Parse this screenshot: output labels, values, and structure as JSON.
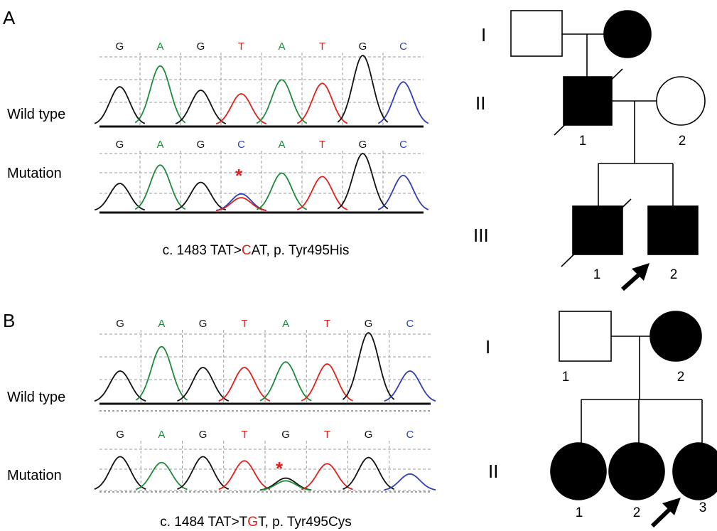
{
  "colors": {
    "G": "#111111",
    "A": "#1f8a3a",
    "T": "#e0201b",
    "C": "#2e3fb5",
    "mutation_highlight": "#e0201b",
    "affected": "#000000",
    "unaffected": "#ffffff"
  },
  "panelA": {
    "letter": "A",
    "wild_label": "Wild type",
    "mut_label": "Mutation",
    "wild_bases": [
      "G",
      "A",
      "G",
      "T",
      "A",
      "T",
      "G",
      "C"
    ],
    "mut_bases": [
      "G",
      "A",
      "G",
      "C",
      "A",
      "T",
      "G",
      "C"
    ],
    "wild_peaks": [
      0.55,
      0.85,
      0.5,
      0.45,
      0.65,
      0.6,
      1.0,
      0.62
    ],
    "mut_peaks": [
      0.48,
      0.8,
      0.5,
      0.3,
      0.66,
      0.6,
      1.0,
      0.62
    ],
    "mut_index": 3,
    "star": "*",
    "caption_pre": "c. 1483 TAT>",
    "caption_hl": "C",
    "caption_post": "AT, p. Tyr495His",
    "pedigree": {
      "gen_I": "I",
      "gen_II": "II",
      "gen_III": "III",
      "II_1": "1",
      "II_2": "2",
      "III_1": "1",
      "III_2": "2"
    }
  },
  "panelB": {
    "letter": "B",
    "wild_label": "Wild type",
    "mut_label": "Mutation",
    "wild_bases": [
      "G",
      "A",
      "G",
      "T",
      "A",
      "T",
      "G",
      "C"
    ],
    "mut_bases": [
      "G",
      "A",
      "G",
      "T",
      "G",
      "T",
      "G",
      "C"
    ],
    "wild_peaks": [
      0.45,
      0.8,
      0.5,
      0.5,
      0.58,
      0.55,
      1.0,
      0.45
    ],
    "mut_peaks": [
      0.82,
      0.68,
      0.82,
      0.72,
      0.3,
      0.65,
      0.8,
      0.4
    ],
    "mut_index": 4,
    "star": "*",
    "caption_pre": "c. 1484 TAT>T",
    "caption_hl": "G",
    "caption_post": "T, p. Tyr495Cys",
    "pedigree": {
      "gen_I": "I",
      "gen_II": "II",
      "I_1": "1",
      "I_2": "2",
      "II_1": "1",
      "II_2": "2",
      "II_3": "3"
    }
  }
}
